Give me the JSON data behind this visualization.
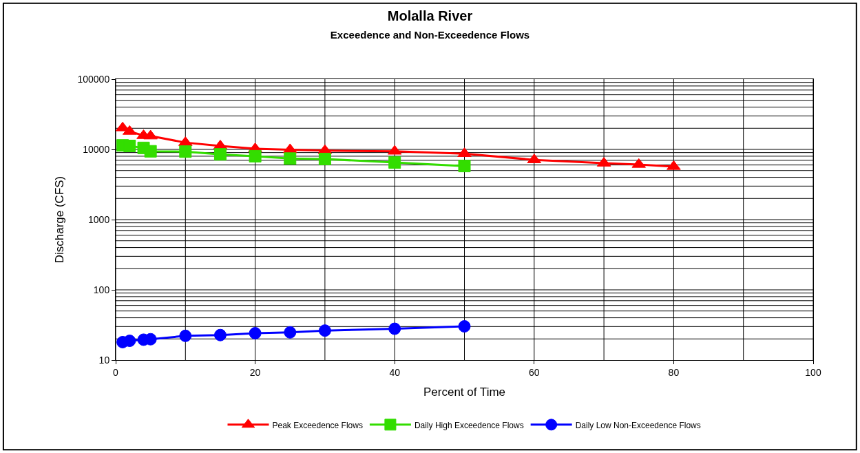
{
  "chart_data": {
    "type": "line",
    "title": "Molalla River",
    "subtitle": "Exceedence and Non-Exceedence Flows",
    "xlabel": "Percent of Time",
    "ylabel": "Discharge (CFS)",
    "log": "y",
    "grid": true,
    "legend": "bottom",
    "line_style": "solid",
    "xlim": [
      0,
      100
    ],
    "xticks": [
      0,
      20,
      40,
      60,
      80,
      100
    ],
    "ylim": [
      10,
      100000
    ],
    "yticks": [
      10,
      100,
      1000,
      10000,
      100000
    ],
    "series": [
      {
        "name": "Peak Exceedence Flows",
        "color": "#ff0000",
        "marker": "triangle",
        "x": [
          1,
          2,
          4,
          5,
          10,
          15,
          20,
          25,
          30,
          40,
          50,
          60,
          70,
          75,
          80
        ],
        "values": [
          20200,
          18000,
          15700,
          15500,
          12500,
          11200,
          10200,
          9900,
          9600,
          9400,
          8700,
          7100,
          6350,
          6100,
          5700
        ]
      },
      {
        "name": "Daily High Exceedence Flows",
        "color": "#33dd00",
        "marker": "square",
        "x": [
          1,
          2,
          4,
          5,
          10,
          15,
          20,
          25,
          30,
          40,
          50
        ],
        "values": [
          11400,
          11200,
          10500,
          9400,
          9300,
          8500,
          8000,
          7400,
          7300,
          6500,
          5800
        ]
      },
      {
        "name": "Daily Low Non-Exceedence Flows",
        "color": "#0000ff",
        "marker": "circle",
        "x": [
          1,
          2,
          4,
          5,
          10,
          15,
          20,
          25,
          30,
          40,
          50
        ],
        "values": [
          18.0,
          18.8,
          19.5,
          19.8,
          22.1,
          22.7,
          24.1,
          24.8,
          26.3,
          27.9,
          30.2
        ]
      }
    ]
  }
}
